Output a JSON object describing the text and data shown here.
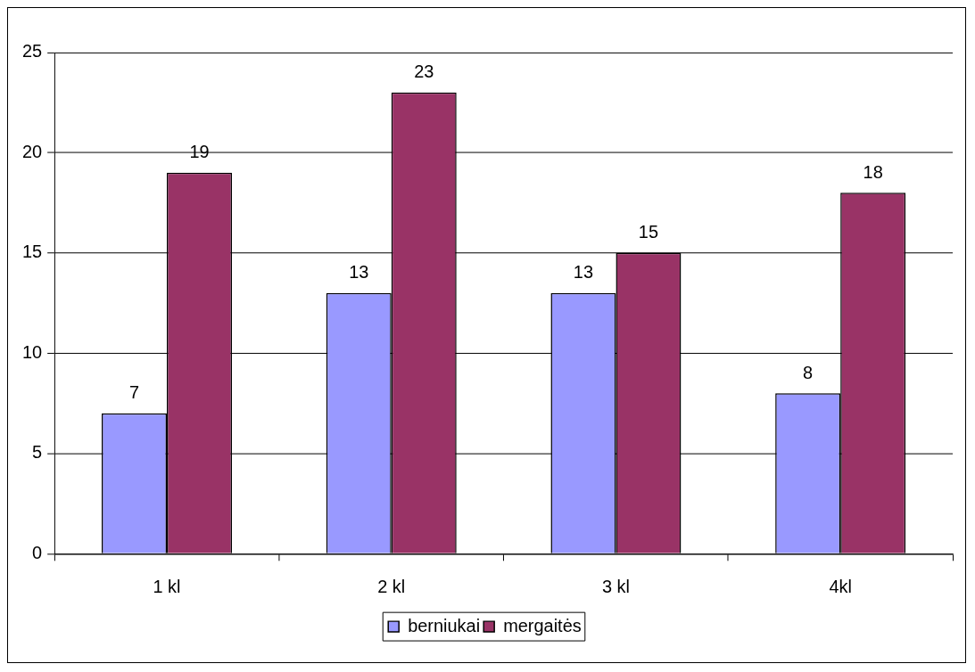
{
  "chart_data": {
    "type": "bar",
    "categories": [
      "1 kl",
      "2 kl",
      "3 kl",
      "4kl"
    ],
    "series": [
      {
        "name": "berniukai",
        "color": "#9999ff",
        "values": [
          7,
          13,
          13,
          8
        ]
      },
      {
        "name": "mergaitės",
        "color": "#993366",
        "values": [
          19,
          23,
          15,
          18
        ]
      }
    ],
    "ylim": [
      0,
      25
    ],
    "yticks": [
      0,
      5,
      10,
      15,
      20,
      25
    ],
    "grid": "y",
    "legend": "bottom",
    "data_labels": true
  }
}
